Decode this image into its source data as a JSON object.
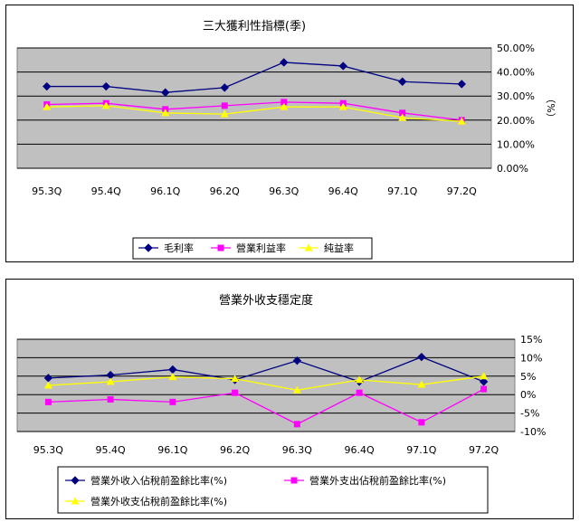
{
  "chart_data": [
    {
      "type": "line",
      "title": "三大獲利性指標(季)",
      "ylabel": "（%）",
      "categories": [
        "95.3Q",
        "95.4Q",
        "96.1Q",
        "96.2Q",
        "96.3Q",
        "96.4Q",
        "97.1Q",
        "97.2Q"
      ],
      "ylim": [
        0,
        50
      ],
      "yticks": [
        "0.00%",
        "10.00%",
        "20.00%",
        "30.00%",
        "40.00%",
        "50.00%"
      ],
      "ytick_values": [
        0,
        10,
        20,
        30,
        40,
        50
      ],
      "grid": true,
      "legend": "bottom",
      "series": [
        {
          "name": "毛利率",
          "color": "#000080",
          "marker": "diamond",
          "values": [
            34,
            34,
            31.5,
            33.5,
            44,
            42.5,
            36,
            35
          ]
        },
        {
          "name": "營業利益率",
          "color": "#ff00ff",
          "marker": "square",
          "values": [
            26.5,
            27,
            24.5,
            26,
            27.5,
            27,
            23,
            20
          ]
        },
        {
          "name": "純益率",
          "color": "#ffff00",
          "marker": "triangle",
          "values": [
            25.5,
            26,
            23,
            22.5,
            25.5,
            25.5,
            21,
            19.5
          ]
        }
      ]
    },
    {
      "type": "line",
      "title": "營業外收支穩定度",
      "categories": [
        "95.3Q",
        "95.4Q",
        "96.1Q",
        "96.2Q",
        "96.3Q",
        "96.4Q",
        "97.1Q",
        "97.2Q"
      ],
      "ylim": [
        -10,
        15
      ],
      "yticks": [
        "-10%",
        "-5%",
        "0%",
        "5%",
        "10%",
        "15%"
      ],
      "ytick_values": [
        -10,
        -5,
        0,
        5,
        10,
        15
      ],
      "grid": true,
      "legend": "bottom",
      "series": [
        {
          "name": "營業外收入佔稅前盈餘比率(%)",
          "color": "#000080",
          "marker": "diamond",
          "values": [
            4.5,
            5.3,
            6.8,
            4,
            9.2,
            3.5,
            10.2,
            3.5
          ]
        },
        {
          "name": "營業外支出佔稅前盈餘比率(%)",
          "color": "#ff00ff",
          "marker": "square",
          "values": [
            -2,
            -1.3,
            -2,
            0.5,
            -8,
            0.5,
            -7.5,
            1.5
          ]
        },
        {
          "name": "營業外收支佔稅前盈餘比率(%)",
          "color": "#ffff00",
          "marker": "triangle",
          "values": [
            2.5,
            3.5,
            4.8,
            4.3,
            1.2,
            4,
            2.7,
            5
          ]
        }
      ]
    }
  ]
}
